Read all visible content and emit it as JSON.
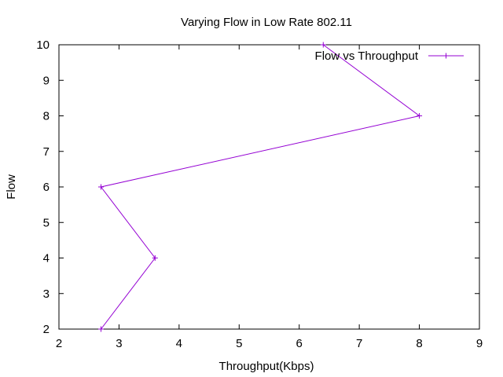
{
  "chart_data": {
    "type": "line",
    "title": "Varying Flow in Low Rate 802.11",
    "xlabel": "Throughput(Kbps)",
    "ylabel": "Flow",
    "xlim": [
      2,
      9
    ],
    "ylim": [
      2,
      10
    ],
    "xticks": [
      "2",
      "3",
      "4",
      "5",
      "6",
      "7",
      "8",
      "9"
    ],
    "yticks": [
      "2",
      "3",
      "4",
      "5",
      "6",
      "7",
      "8",
      "9",
      "10"
    ],
    "grid": false,
    "legend_position": "top-right",
    "series": [
      {
        "name": "Flow vs Throughput",
        "color": "#9400d3",
        "marker": "plus",
        "points": [
          {
            "x": 2.7,
            "y": 2
          },
          {
            "x": 3.6,
            "y": 4
          },
          {
            "x": 2.7,
            "y": 6
          },
          {
            "x": 8.0,
            "y": 8
          },
          {
            "x": 6.4,
            "y": 10
          }
        ]
      }
    ]
  }
}
